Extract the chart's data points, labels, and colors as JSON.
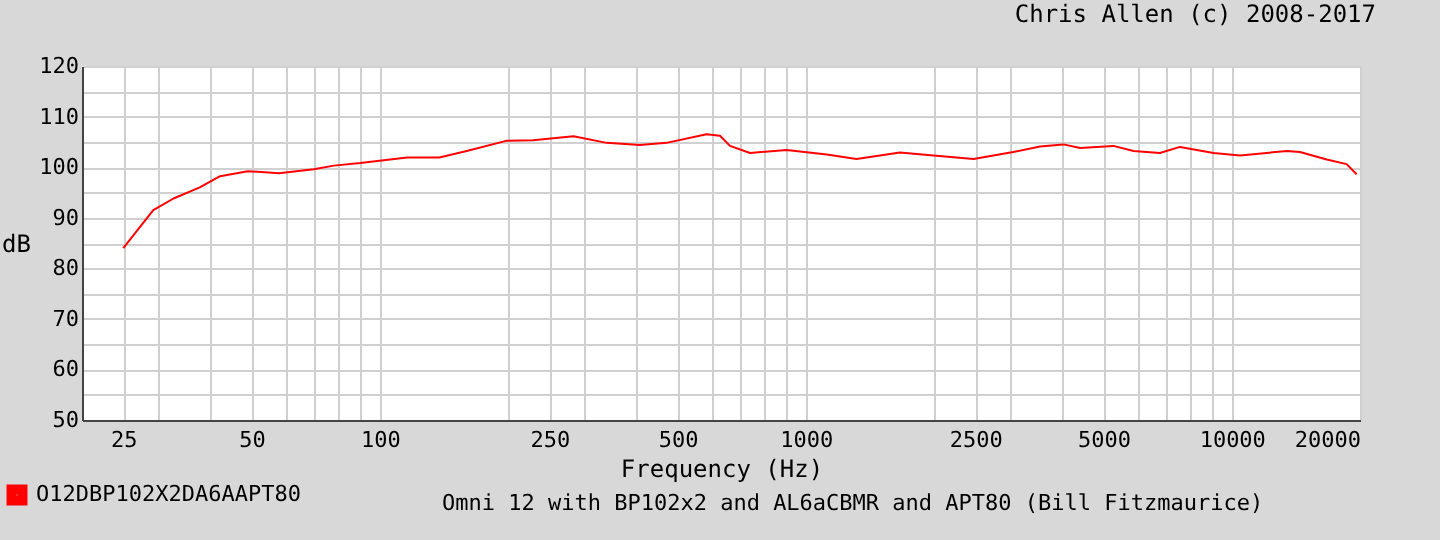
{
  "chart_data": {
    "type": "line",
    "title": "Chris Allen (c) 2008-2017",
    "xlabel": "Frequency (Hz)",
    "ylabel": "dB",
    "log": "x",
    "grid": true,
    "legend": "bottom left",
    "marker": "none",
    "line_style": "solid",
    "annotations": [
      "Omni 12 with BP102x2 and AL6aCBMR and APT80 (Bill Fitzmaurice)"
    ],
    "xlim": [
      20,
      20000
    ],
    "ylim": [
      50,
      120
    ],
    "xticks": [
      {
        "value": 20,
        "label": null
      },
      25,
      {
        "value": 30,
        "label": null
      },
      {
        "value": 40,
        "label": null
      },
      50,
      {
        "value": 60,
        "label": null
      },
      {
        "value": 70,
        "label": null
      },
      {
        "value": 80,
        "label": null
      },
      {
        "value": 90,
        "label": null
      },
      100,
      {
        "value": 200,
        "label": null
      },
      250,
      {
        "value": 300,
        "label": null
      },
      {
        "value": 400,
        "label": null
      },
      500,
      {
        "value": 600,
        "label": null
      },
      {
        "value": 700,
        "label": null
      },
      {
        "value": 800,
        "label": null
      },
      {
        "value": 900,
        "label": null
      },
      1000,
      {
        "value": 2000,
        "label": null
      },
      2500,
      {
        "value": 3000,
        "label": null
      },
      {
        "value": 4000,
        "label": null
      },
      5000,
      {
        "value": 6000,
        "label": null
      },
      {
        "value": 7000,
        "label": null
      },
      {
        "value": 8000,
        "label": null
      },
      {
        "value": 9000,
        "label": null
      },
      10000,
      20000
    ],
    "yticks": [
      50,
      {
        "value": 55,
        "label": null
      },
      60,
      {
        "value": 65,
        "label": null
      },
      70,
      {
        "value": 75,
        "label": null
      },
      80,
      {
        "value": 85,
        "label": null
      },
      90,
      {
        "value": 95,
        "label": null
      },
      100,
      {
        "value": 105,
        "label": null
      },
      110,
      {
        "value": 115,
        "label": null
      },
      120
    ],
    "series": [
      {
        "name": "O12DBP102X2DA6AAPT80",
        "color": "#ff0000",
        "x": [
          25,
          29.4,
          32.8,
          37.8,
          42.2,
          49,
          58,
          70,
          78,
          90,
          116,
          138,
          160,
          198,
          229,
          285,
          341,
          408,
          471,
          585,
          629,
          664,
          740,
          902,
          1120,
          1316,
          1664,
          1994,
          2476,
          3070,
          3548,
          4026,
          4405,
          5274,
          5880,
          6780,
          7560,
          9060,
          10460,
          13460,
          14460,
          16710,
          18600,
          19640
        ],
        "values": [
          84,
          91.5,
          93.8,
          96,
          98.2,
          99.2,
          98.8,
          99.6,
          100.3,
          100.8,
          101.9,
          101.9,
          103.2,
          105.2,
          105.3,
          106.1,
          104.8,
          104.4,
          104.8,
          106.5,
          106.2,
          104.2,
          102.8,
          103.4,
          102.5,
          101.6,
          102.9,
          102.3,
          101.6,
          103,
          104.1,
          104.5,
          103.8,
          104.2,
          103.2,
          102.8,
          104,
          102.8,
          102.3,
          103.2,
          103,
          101.5,
          100.6,
          98.6
        ]
      }
    ]
  }
}
